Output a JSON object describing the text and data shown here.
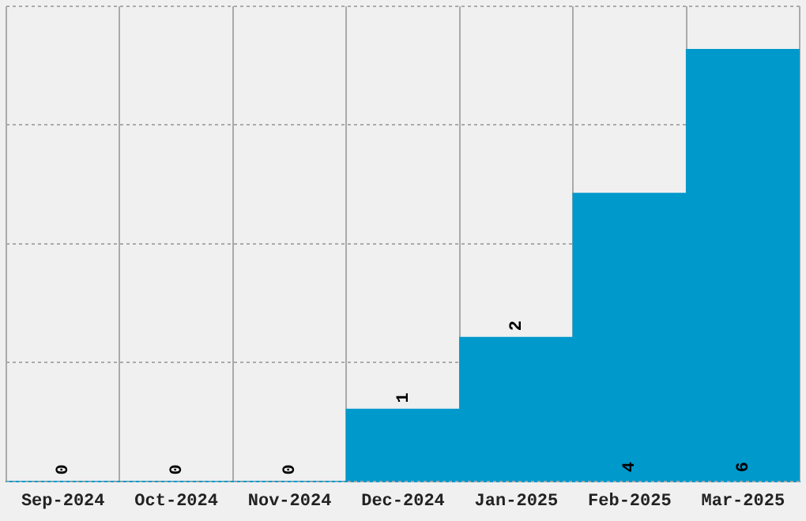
{
  "chart_data": {
    "type": "bar",
    "categories": [
      "Sep-2024",
      "Oct-2024",
      "Nov-2024",
      "Dec-2024",
      "Jan-2025",
      "Feb-2025",
      "Mar-2025"
    ],
    "values": [
      0,
      0,
      0,
      1,
      2,
      4,
      6
    ],
    "color": "#0099cc",
    "ylim": [
      0,
      6.6
    ],
    "yticks": [
      {
        "value": 0,
        "label": null
      },
      {
        "value": 1.65,
        "label": null
      },
      {
        "value": 3.3,
        "label": null
      },
      {
        "value": 4.95,
        "label": null
      },
      {
        "value": 6.6,
        "label": null
      }
    ],
    "grid": true,
    "tick_labels": "x",
    "data_labels": true,
    "legend": false
  }
}
